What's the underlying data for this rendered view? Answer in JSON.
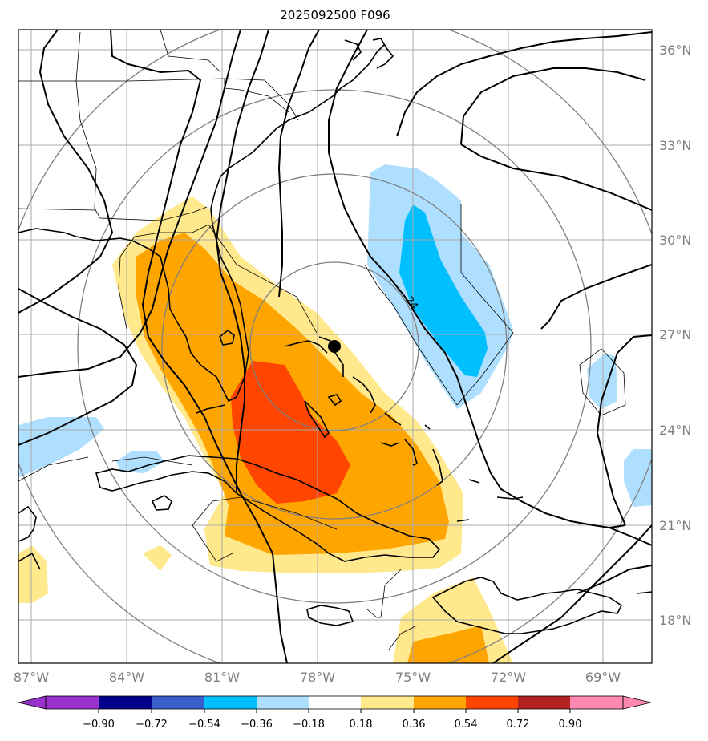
{
  "title": "2025092500 F096",
  "map": {
    "lat_labels": [
      "36°N",
      "33°N",
      "30°N",
      "27°N",
      "24°N",
      "21°N",
      "18°N"
    ],
    "lon_labels": [
      "87°W",
      "84°W",
      "81°W",
      "78°W",
      "75°W",
      "72°W",
      "69°W"
    ],
    "contour_label": "24",
    "storm_marker": "storm-center",
    "colors": {
      "frame": "#000000",
      "grid": "#a9a9a9",
      "range_ring": "#808080",
      "coast": "#000000"
    }
  },
  "colorbar": {
    "ticks": [
      "−0.90",
      "−0.72",
      "−0.54",
      "−0.36",
      "−0.18",
      "0.18",
      "0.36",
      "0.54",
      "0.72",
      "0.90"
    ],
    "colors": [
      "#9932cc",
      "#8a2be2",
      "#00008b",
      "#3a5fcd",
      "#00bfff",
      "#afdfff",
      "#ffffff",
      "#ffe98c",
      "#ffa500",
      "#ff4500",
      "#b22222",
      "#ff88b0"
    ]
  }
}
